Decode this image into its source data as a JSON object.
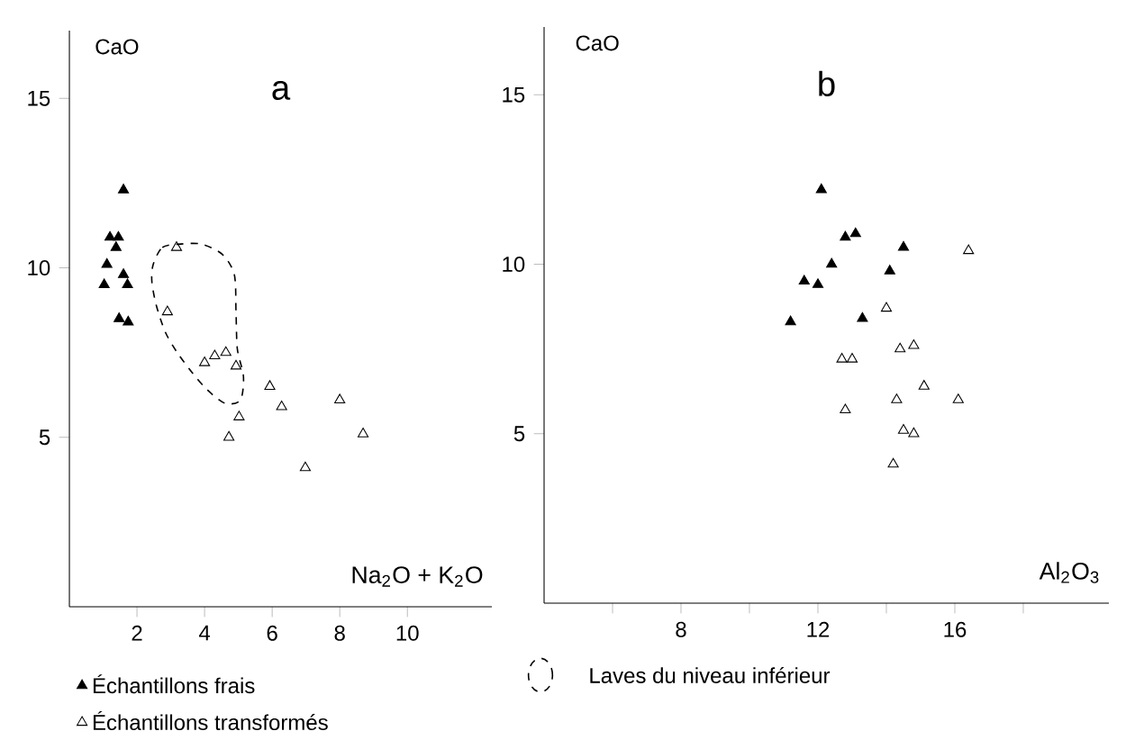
{
  "chart_data": [
    {
      "type": "scatter",
      "title": "a",
      "xlabel": "Na$_{2}$O + K$_{2}$O",
      "ylabel": "CaO",
      "xlim": [
        0,
        12.5
      ],
      "ylim": [
        0,
        17
      ],
      "xticks": [
        2,
        4,
        6,
        8,
        10
      ],
      "yticks": [
        5,
        10,
        15
      ],
      "legend": "bottom",
      "marker": "triangle",
      "series": [
        {
          "name": "Échantillons frais",
          "color": "#000000",
          "x": [
            1.6,
            1.2,
            1.45,
            1.38,
            1.11,
            1.6,
            1.72,
            1.03,
            1.47,
            1.74
          ],
          "values": [
            12.3,
            10.9,
            10.9,
            10.6,
            10.1,
            9.8,
            9.5,
            9.5,
            8.5,
            8.4
          ]
        },
        {
          "name": "Échantillons transformés",
          "color": "#000000",
          "x": [
            3.17,
            2.9,
            4.0,
            4.3,
            4.63,
            4.93,
            5.93,
            6.28,
            5.02,
            4.72,
            8.0,
            8.69,
            6.98
          ],
          "values": [
            10.6,
            8.7,
            7.2,
            7.4,
            7.5,
            7.1,
            6.5,
            5.9,
            5.6,
            5.0,
            6.1,
            5.1,
            4.1
          ]
        }
      ],
      "annotations": [
        "Laves du niveau inférieur"
      ]
    },
    {
      "type": "scatter",
      "title": "b",
      "xlabel": "Al$_{2}$O$_{3}$",
      "ylabel": "CaO",
      "xlim": [
        4,
        20.5
      ],
      "ylim": [
        0,
        17
      ],
      "xticks": [
        {
          "value": 6,
          "label": null
        },
        8,
        {
          "value": 10,
          "label": null
        },
        12,
        {
          "value": 14,
          "label": null
        },
        16,
        {
          "value": 18,
          "label": null
        }
      ],
      "yticks": [
        5,
        10,
        15
      ],
      "marker": "triangle",
      "series": [
        {
          "color": "#000000",
          "x": [
            12.1,
            12.8,
            13.1,
            14.5,
            12.4,
            14.1,
            11.6,
            12.0,
            11.2,
            13.3
          ],
          "values": [
            12.2,
            10.8,
            10.9,
            10.5,
            10.0,
            9.8,
            9.5,
            9.4,
            8.3,
            8.4
          ]
        },
        {
          "color": "#000000",
          "x": [
            16.4,
            14.0,
            12.7,
            13.0,
            14.4,
            14.8,
            15.1,
            14.3,
            16.1,
            12.8,
            14.5,
            14.8,
            14.2
          ],
          "values": [
            10.4,
            8.7,
            7.2,
            7.2,
            7.5,
            7.6,
            6.4,
            6.0,
            6.0,
            5.7,
            5.1,
            5.0,
            4.1
          ]
        }
      ]
    }
  ]
}
